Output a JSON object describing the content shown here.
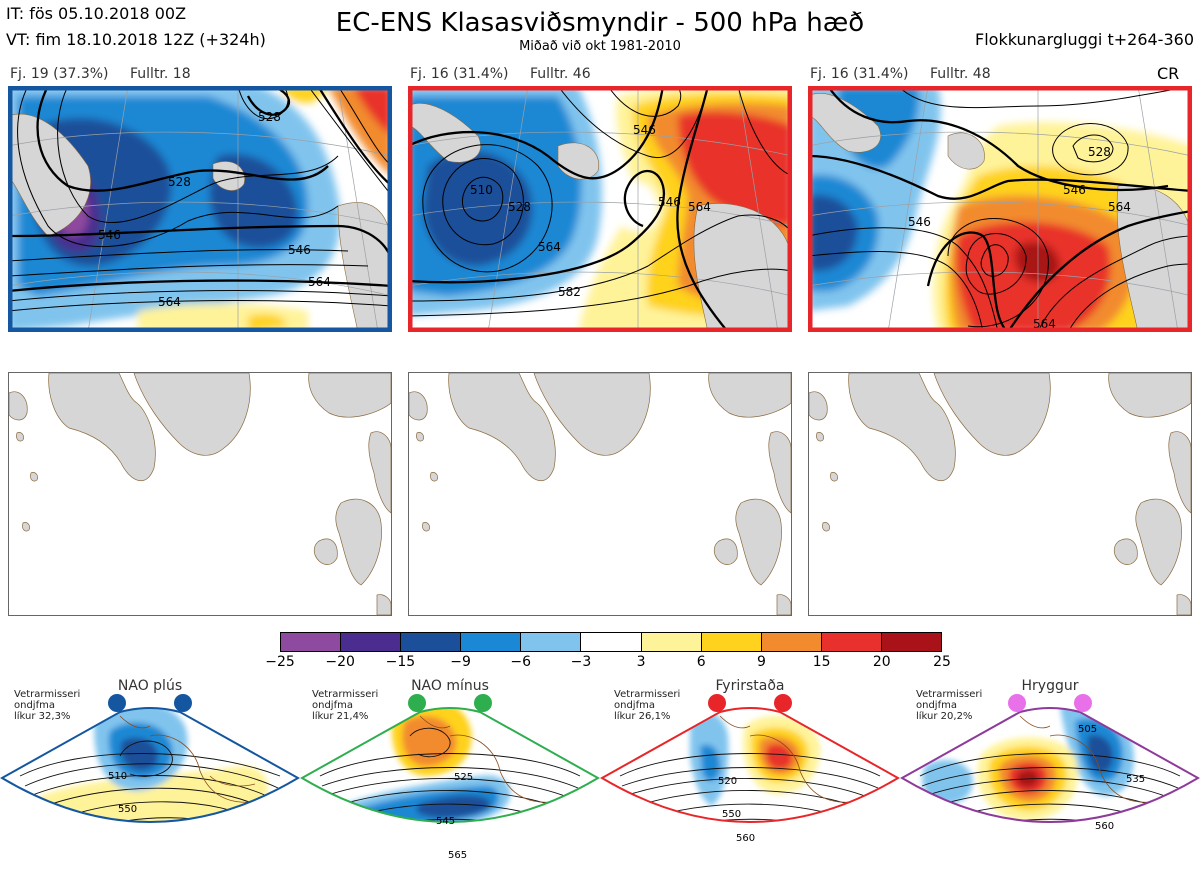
{
  "header": {
    "it_line": "IT: fös 05.10.2018 00Z",
    "vt_line": "VT: fim 18.10.2018 12Z  (+324h)",
    "title": "EC-ENS Klasasviðsmyndir - 500 hPa hæð",
    "subtitle": "Miðað við okt 1981-2010",
    "window": "Flokkunargluggi t+264-360"
  },
  "clusters": [
    {
      "label": "Fj. 19 (37.3%)",
      "rep": "Fulltr. 18",
      "frame_color": "#1457a0",
      "tag": "",
      "contour_labels": [
        "528",
        "528",
        "546",
        "546",
        "564",
        "564"
      ]
    },
    {
      "label": "Fj. 16 (31.4%)",
      "rep": "Fulltr. 46",
      "frame_color": "#e8262a",
      "tag": "",
      "contour_labels": [
        "510",
        "528",
        "546",
        "564",
        "546",
        "564",
        "582"
      ]
    },
    {
      "label": "Fj. 16 (31.4%)",
      "rep": "Fulltr. 48",
      "frame_color": "#e8262a",
      "tag": "CR",
      "contour_labels": [
        "528",
        "546",
        "546",
        "564",
        "564"
      ]
    }
  ],
  "colorbar": {
    "ticks": [
      "−25",
      "−20",
      "−15",
      "−9",
      "−6",
      "−3",
      "3",
      "6",
      "9",
      "15",
      "20",
      "25"
    ],
    "colors": [
      "#8e4a9e",
      "#4a2d8e",
      "#1c4f9a",
      "#1a88d4",
      "#80c4ee",
      "#ffffff",
      "#fff39a",
      "#ffd21e",
      "#f28b2e",
      "#e8302c",
      "#a81218"
    ]
  },
  "regimes": [
    {
      "name": "NAO plús",
      "frame_color": "#1457a0",
      "dot_color": "#1457a0",
      "prob_lines": [
        "Vetrarmisseri",
        "ondjfma",
        "líkur 32,3%"
      ],
      "labels": [
        "510",
        "550"
      ]
    },
    {
      "name": "NAO mínus",
      "frame_color": "#2eae4e",
      "dot_color": "#2eae4e",
      "prob_lines": [
        "Vetrarmisseri",
        "ondjfma",
        "líkur 21,4%"
      ],
      "labels": [
        "525",
        "545",
        "565"
      ]
    },
    {
      "name": "Fyrirstaða",
      "frame_color": "#e8262a",
      "dot_color": "#e8262a",
      "prob_lines": [
        "Vetrarmisseri",
        "ondjfma",
        "líkur 26,1%"
      ],
      "labels": [
        "520",
        "550",
        "560"
      ]
    },
    {
      "name": "Hryggur",
      "frame_color": "#8e3a9a",
      "dot_color": "#e870e8",
      "prob_lines": [
        "Vetrarmisseri",
        "ondjfma",
        "líkur 20,2%"
      ],
      "labels": [
        "505",
        "535",
        "560"
      ]
    }
  ]
}
